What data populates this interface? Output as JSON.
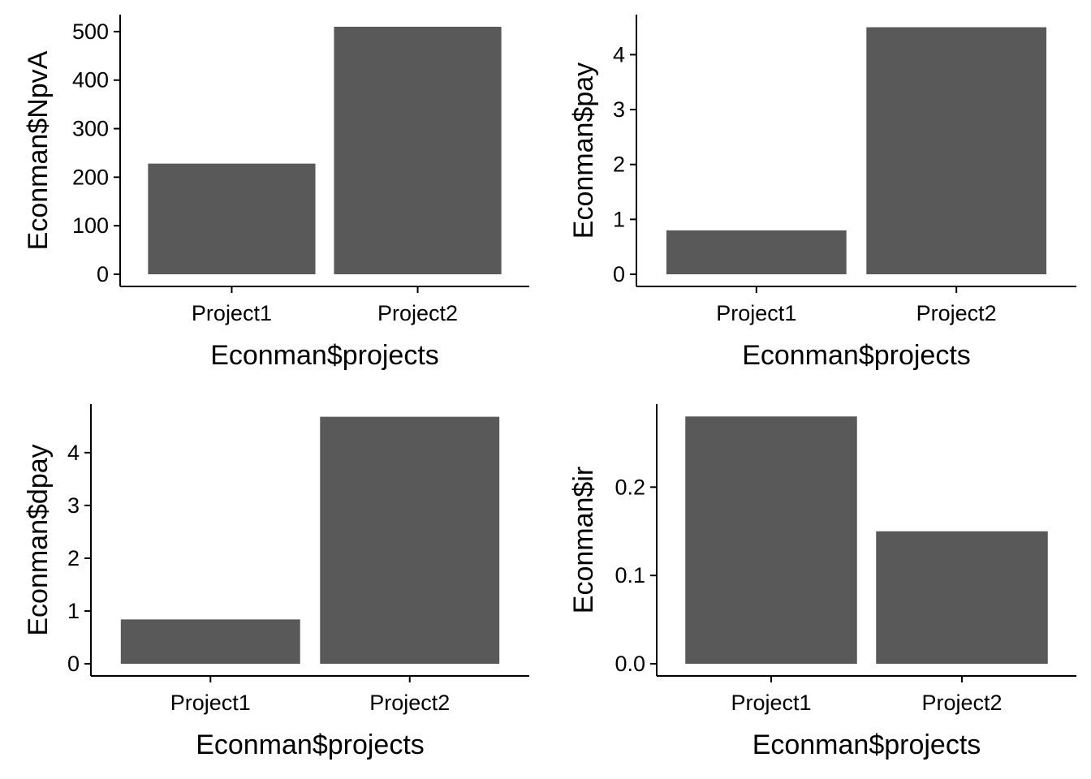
{
  "bar_color": "#595959",
  "axis_color": "#000000",
  "chart_data": [
    {
      "type": "bar",
      "position": "top-left",
      "categories": [
        "Project1",
        "Project2"
      ],
      "values": [
        228,
        510
      ],
      "xlabel": "Econman$projects",
      "ylabel": "Econman$NpvA",
      "ylim": [
        0,
        535
      ],
      "yticks": [
        0,
        100,
        200,
        300,
        400,
        500
      ],
      "ytick_labels": [
        "0",
        "100",
        "200",
        "300",
        "400",
        "500"
      ],
      "grid": false,
      "legend": "none"
    },
    {
      "type": "bar",
      "position": "top-right",
      "categories": [
        "Project1",
        "Project2"
      ],
      "values": [
        0.8,
        4.5
      ],
      "xlabel": "Econman$projects",
      "ylabel": "Econman$pay",
      "ylim": [
        0,
        4.73
      ],
      "yticks": [
        0,
        1,
        2,
        3,
        4
      ],
      "ytick_labels": [
        "0",
        "1",
        "2",
        "3",
        "4"
      ],
      "grid": false,
      "legend": "none"
    },
    {
      "type": "bar",
      "position": "bottom-left",
      "categories": [
        "Project1",
        "Project2"
      ],
      "values": [
        0.84,
        4.68
      ],
      "xlabel": "Econman$projects",
      "ylabel": "Econman$dpay",
      "ylim": [
        0,
        4.92
      ],
      "yticks": [
        0,
        1,
        2,
        3,
        4
      ],
      "ytick_labels": [
        "0",
        "1",
        "2",
        "3",
        "4"
      ],
      "grid": false,
      "legend": "none"
    },
    {
      "type": "bar",
      "position": "bottom-right",
      "categories": [
        "Project1",
        "Project2"
      ],
      "values": [
        0.28,
        0.15
      ],
      "xlabel": "Econman$projects",
      "ylabel": "Econman$ir",
      "ylim": [
        0,
        0.294
      ],
      "yticks": [
        0.0,
        0.1,
        0.2
      ],
      "ytick_labels": [
        "0.0",
        "0.1",
        "0.2"
      ],
      "grid": false,
      "legend": "none"
    }
  ]
}
